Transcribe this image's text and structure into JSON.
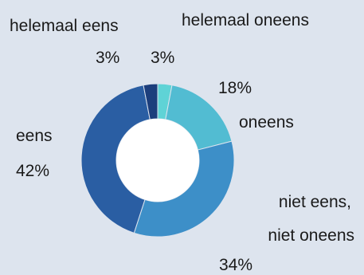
{
  "chart_data": {
    "type": "pie",
    "variant": "donut",
    "title": "",
    "slices": [
      {
        "label": "helemaal oneens",
        "value": 3,
        "display": "3%",
        "color": "#5fd3d6"
      },
      {
        "label": "oneens",
        "value": 18,
        "display": "18%",
        "color": "#52bcd2"
      },
      {
        "label": "niet eens, niet oneens",
        "label_lines": [
          "niet eens,",
          "niet oneens"
        ],
        "value": 34,
        "display": "34%",
        "color": "#3d8fc8"
      },
      {
        "label": "eens",
        "value": 42,
        "display": "42%",
        "color": "#2a5ea3"
      },
      {
        "label": "helemaal eens",
        "value": 3,
        "display": "3%",
        "color": "#1c3e7c"
      }
    ],
    "start_angle_deg": 0,
    "direction": "clockwise",
    "legend": "none",
    "background": "#dde4ee"
  }
}
